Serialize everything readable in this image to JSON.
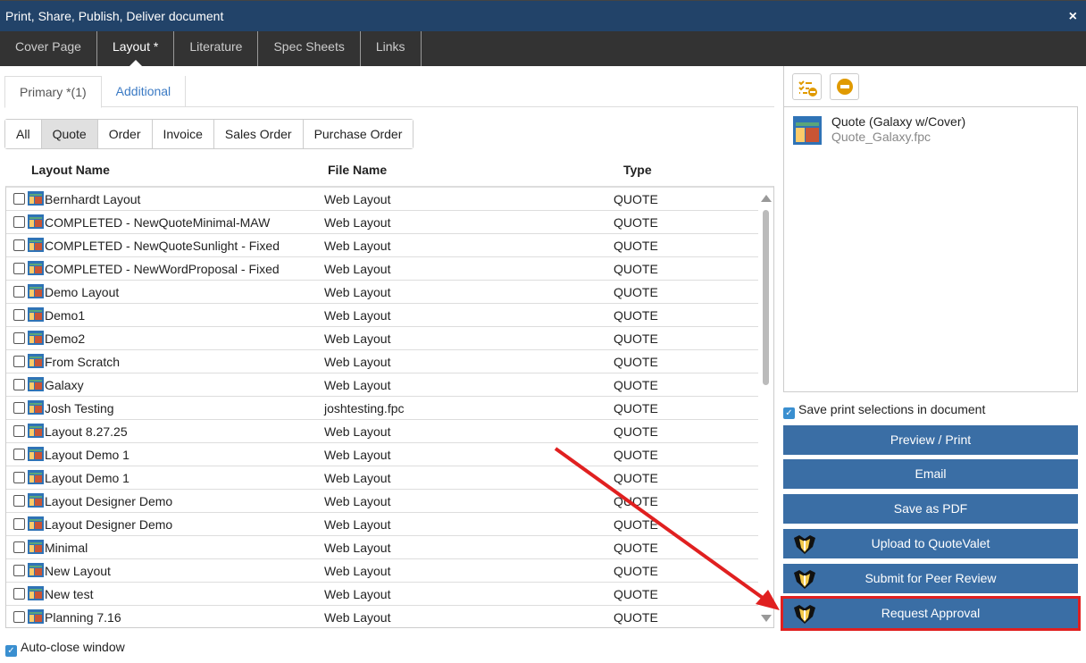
{
  "window": {
    "title": "Print, Share, Publish, Deliver document",
    "close": "×"
  },
  "tabs": [
    {
      "label": "Cover Page"
    },
    {
      "label": "Layout *",
      "active": true
    },
    {
      "label": "Literature"
    },
    {
      "label": "Spec Sheets"
    },
    {
      "label": "Links"
    }
  ],
  "subtabs": [
    {
      "label": "Primary *(1)",
      "active": true
    },
    {
      "label": "Additional"
    }
  ],
  "filters": [
    {
      "label": "All"
    },
    {
      "label": "Quote",
      "active": true
    },
    {
      "label": "Order"
    },
    {
      "label": "Invoice"
    },
    {
      "label": "Sales Order"
    },
    {
      "label": "Purchase Order"
    }
  ],
  "columns": {
    "name": "Layout Name",
    "file": "File Name",
    "type": "Type"
  },
  "rows": [
    {
      "name": "Bernhardt Layout",
      "file": "Web Layout",
      "type": "QUOTE"
    },
    {
      "name": "COMPLETED - NewQuoteMinimal-MAW",
      "file": "Web Layout",
      "type": "QUOTE"
    },
    {
      "name": "COMPLETED - NewQuoteSunlight - Fixed",
      "file": "Web Layout",
      "type": "QUOTE"
    },
    {
      "name": "COMPLETED - NewWordProposal - Fixed",
      "file": "Web Layout",
      "type": "QUOTE"
    },
    {
      "name": "Demo Layout",
      "file": "Web Layout",
      "type": "QUOTE"
    },
    {
      "name": "Demo1",
      "file": "Web Layout",
      "type": "QUOTE"
    },
    {
      "name": "Demo2",
      "file": "Web Layout",
      "type": "QUOTE"
    },
    {
      "name": "From Scratch",
      "file": "Web Layout",
      "type": "QUOTE"
    },
    {
      "name": "Galaxy",
      "file": "Web Layout",
      "type": "QUOTE"
    },
    {
      "name": "Josh Testing",
      "file": "joshtesting.fpc",
      "type": "QUOTE"
    },
    {
      "name": "Layout 8.27.25",
      "file": "Web Layout",
      "type": "QUOTE"
    },
    {
      "name": "Layout Demo 1",
      "file": "Web Layout",
      "type": "QUOTE"
    },
    {
      "name": "Layout Demo 1",
      "file": "Web Layout",
      "type": "QUOTE"
    },
    {
      "name": "Layout Designer Demo",
      "file": "Web Layout",
      "type": "QUOTE"
    },
    {
      "name": "Layout Designer Demo",
      "file": "Web Layout",
      "type": "QUOTE"
    },
    {
      "name": "Minimal",
      "file": "Web Layout",
      "type": "QUOTE"
    },
    {
      "name": "New Layout",
      "file": "Web Layout",
      "type": "QUOTE"
    },
    {
      "name": "New test",
      "file": "Web Layout",
      "type": "QUOTE"
    },
    {
      "name": "Planning 7.16",
      "file": "Web Layout",
      "type": "QUOTE"
    }
  ],
  "selected": {
    "title": "Quote (Galaxy w/Cover)",
    "file": "Quote_Galaxy.fpc"
  },
  "save_selections": {
    "label": "Save print selections in document",
    "checked": true
  },
  "auto_close": {
    "label": "Auto-close window",
    "checked": true
  },
  "actions": [
    {
      "label": "Preview / Print"
    },
    {
      "label": "Email"
    },
    {
      "label": "Save as PDF"
    },
    {
      "label": "Upload to QuoteValet",
      "icon": "tuxedo-icon"
    },
    {
      "label": "Submit for Peer Review",
      "icon": "tuxedo-icon"
    },
    {
      "label": "Request Approval",
      "icon": "tuxedo-icon",
      "highlighted": true
    }
  ],
  "colors": {
    "titlebar": "#224369",
    "tabbar": "#333333",
    "button": "#3a6ea5",
    "highlight": "#e02020",
    "accent": "#e09a00"
  }
}
